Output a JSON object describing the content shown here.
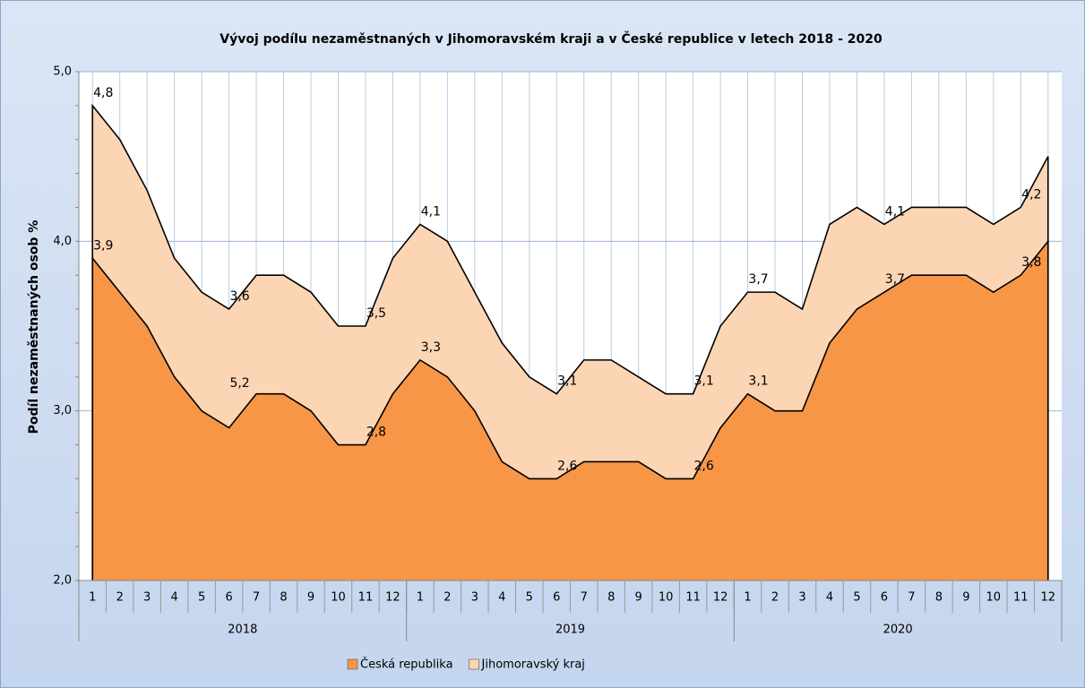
{
  "chart_data": {
    "type": "area",
    "title": "Vývoj podílu nezaměstnaných v Jihomoravském kraji a v České republice v letech 2018 - 2020",
    "y_label": "Podíl nezaměstnaných osob  %",
    "categories": [
      "1",
      "2",
      "3",
      "4",
      "5",
      "6",
      "7",
      "8",
      "9",
      "10",
      "11",
      "12",
      "1",
      "2",
      "3",
      "4",
      "5",
      "6",
      "7",
      "8",
      "9",
      "10",
      "11",
      "12",
      "1",
      "2",
      "3",
      "4",
      "5",
      "6",
      "7",
      "8",
      "9",
      "10",
      "11",
      "12"
    ],
    "year_groups": [
      "2018",
      "2019",
      "2020"
    ],
    "series": [
      {
        "name": "Jihomoravský kraj",
        "color": "#fcd5b5",
        "values": [
          4.8,
          4.6,
          4.3,
          3.9,
          3.7,
          3.6,
          3.8,
          3.8,
          3.7,
          3.5,
          3.5,
          3.9,
          4.1,
          4.0,
          3.7,
          3.4,
          3.2,
          3.1,
          3.3,
          3.3,
          3.2,
          3.1,
          3.1,
          3.5,
          3.7,
          3.7,
          3.6,
          4.1,
          4.2,
          4.1,
          4.2,
          4.2,
          4.2,
          4.1,
          4.2,
          4.5
        ],
        "value_labels": [
          "4,8",
          null,
          null,
          null,
          null,
          "3,6",
          null,
          null,
          null,
          null,
          "3,5",
          null,
          "4,1",
          null,
          null,
          null,
          null,
          "3,1",
          null,
          null,
          null,
          null,
          "3,1",
          null,
          "3,7",
          null,
          null,
          null,
          null,
          "4,1",
          null,
          null,
          null,
          null,
          "4,2",
          null
        ]
      },
      {
        "name": "Česká republika",
        "color": "#f79646",
        "values": [
          3.9,
          3.7,
          3.5,
          3.2,
          3.0,
          2.9,
          3.1,
          3.1,
          3.0,
          2.8,
          2.8,
          3.1,
          3.3,
          3.2,
          3.0,
          2.7,
          2.6,
          2.6,
          2.7,
          2.7,
          2.7,
          2.6,
          2.6,
          2.9,
          3.1,
          3.0,
          3.0,
          3.4,
          3.6,
          3.7,
          3.8,
          3.8,
          3.8,
          3.7,
          3.8,
          4.0
        ],
        "value_labels": [
          "3,9",
          null,
          null,
          null,
          null,
          null,
          null,
          null,
          null,
          null,
          "2,8",
          null,
          "3,3",
          null,
          null,
          null,
          null,
          "2,6",
          null,
          null,
          null,
          null,
          "2,6",
          null,
          "3,1",
          null,
          null,
          null,
          null,
          "3,7",
          null,
          null,
          null,
          null,
          "3,8",
          null
        ]
      }
    ],
    "legend_order": [
      1,
      0
    ],
    "annotations": [
      "5,2"
    ],
    "ylim": [
      2.0,
      5.0
    ],
    "yticks": [
      {
        "value": 2.0,
        "label": "2,0"
      },
      {
        "value": 3.0,
        "label": "3,0"
      },
      {
        "value": 4.0,
        "label": "4,0"
      },
      {
        "value": 5.0,
        "label": "5,0"
      }
    ],
    "grid": true
  }
}
